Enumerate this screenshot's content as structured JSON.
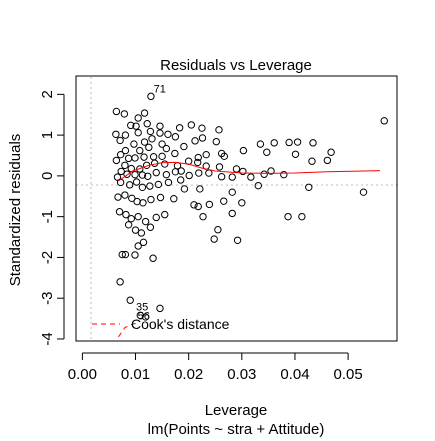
{
  "chart_data": {
    "type": "scatter",
    "title": "Residuals vs Leverage",
    "xlabel": "Leverage",
    "subtitle": "lm(Points ~ stra + Attitude)",
    "ylabel": "Standardized residuals",
    "xlim": [
      -0.0012,
      0.0592
    ],
    "ylim": [
      -4.05,
      2.45
    ],
    "x_ticks": [
      0.0,
      0.01,
      0.02,
      0.03,
      0.04,
      0.05
    ],
    "x_tick_labels": [
      "0.00",
      "0.01",
      "0.02",
      "0.03",
      "0.04",
      "0.05"
    ],
    "y_ticks": [
      -4,
      -3,
      -2,
      -1,
      0,
      1,
      2
    ],
    "y_tick_labels": [
      "-4",
      "-3",
      "-2",
      "-1",
      "0",
      "1",
      "2"
    ],
    "grid": false,
    "legend": {
      "position": "bottom-left",
      "label": "Cook's distance",
      "color": "#ff0000"
    },
    "colors": {
      "points": "#000000",
      "smooth": "#ff0000",
      "reference": "#bdbdbd"
    },
    "annotations": [
      {
        "text": "71",
        "x": 0.0134,
        "y": 2.05
      },
      {
        "text": "35",
        "x": 0.0101,
        "y": -3.3
      },
      {
        "text": "56",
        "x": 0.0104,
        "y": -3.52
      }
    ],
    "points": [
      [
        0.0129,
        1.95
      ],
      [
        0.0064,
        1.58
      ],
      [
        0.0079,
        1.52
      ],
      [
        0.0117,
        1.54
      ],
      [
        0.0105,
        1.42
      ],
      [
        0.0122,
        1.28
      ],
      [
        0.0091,
        1.24
      ],
      [
        0.0101,
        1.22
      ],
      [
        0.0146,
        1.22
      ],
      [
        0.0205,
        1.25
      ],
      [
        0.0183,
        1.18
      ],
      [
        0.0225,
        1.17
      ],
      [
        0.0257,
        1.13
      ],
      [
        0.0161,
        1.02
      ],
      [
        0.0063,
        1.02
      ],
      [
        0.0081,
        1.0
      ],
      [
        0.0105,
        1.06
      ],
      [
        0.0128,
        1.09
      ],
      [
        0.0146,
        1.05
      ],
      [
        0.0175,
        0.96
      ],
      [
        0.0226,
        0.93
      ],
      [
        0.0252,
        0.84
      ],
      [
        0.0212,
        0.86
      ],
      [
        0.0191,
        0.72
      ],
      [
        0.0071,
        0.87
      ],
      [
        0.0097,
        0.78
      ],
      [
        0.0117,
        0.83
      ],
      [
        0.0131,
        0.91
      ],
      [
        0.015,
        0.78
      ],
      [
        0.0158,
        0.67
      ],
      [
        0.0108,
        0.62
      ],
      [
        0.0125,
        0.7
      ],
      [
        0.0081,
        0.62
      ],
      [
        0.0072,
        0.52
      ],
      [
        0.0087,
        0.43
      ],
      [
        0.0099,
        0.44
      ],
      [
        0.0116,
        0.46
      ],
      [
        0.0134,
        0.47
      ],
      [
        0.015,
        0.48
      ],
      [
        0.0174,
        0.55
      ],
      [
        0.0218,
        0.45
      ],
      [
        0.0233,
        0.52
      ],
      [
        0.0262,
        0.55
      ],
      [
        0.0267,
        0.48
      ],
      [
        0.0303,
        0.62
      ],
      [
        0.0335,
        0.78
      ],
      [
        0.0361,
        0.81
      ],
      [
        0.0389,
        0.82
      ],
      [
        0.0405,
        0.83
      ],
      [
        0.0434,
        0.81
      ],
      [
        0.0347,
        0.58
      ],
      [
        0.0401,
        0.53
      ],
      [
        0.0468,
        0.58
      ],
      [
        0.0461,
        0.38
      ],
      [
        0.0568,
        1.35
      ],
      [
        0.0064,
        0.38
      ],
      [
        0.008,
        0.26
      ],
      [
        0.0092,
        0.18
      ],
      [
        0.0108,
        0.17
      ],
      [
        0.0121,
        0.26
      ],
      [
        0.0136,
        0.31
      ],
      [
        0.0155,
        0.29
      ],
      [
        0.0179,
        0.25
      ],
      [
        0.02,
        0.36
      ],
      [
        0.0217,
        0.33
      ],
      [
        0.0233,
        0.24
      ],
      [
        0.0258,
        0.22
      ],
      [
        0.029,
        0.17
      ],
      [
        0.0302,
        0.11
      ],
      [
        0.0073,
        0.11
      ],
      [
        0.0084,
        0.04
      ],
      [
        0.0099,
        0.03
      ],
      [
        0.0113,
        0.02
      ],
      [
        0.0123,
        -0.01
      ],
      [
        0.0139,
        0.08
      ],
      [
        0.0158,
        0.03
      ],
      [
        0.0175,
        0.1
      ],
      [
        0.0186,
        0.12
      ],
      [
        0.0201,
        0.01
      ],
      [
        0.0219,
        0.07
      ],
      [
        0.0238,
        0.07
      ],
      [
        0.0262,
        -0.02
      ],
      [
        0.0282,
        -0.03
      ],
      [
        0.0317,
        -0.03
      ],
      [
        0.0342,
        0.04
      ],
      [
        0.0355,
        0.12
      ],
      [
        0.0379,
        0.03
      ],
      [
        0.0432,
        0.36
      ],
      [
        0.0066,
        -0.03
      ],
      [
        0.0072,
        -0.16
      ],
      [
        0.0089,
        -0.22
      ],
      [
        0.0102,
        -0.15
      ],
      [
        0.0113,
        -0.28
      ],
      [
        0.0127,
        -0.25
      ],
      [
        0.0143,
        -0.21
      ],
      [
        0.0162,
        -0.16
      ],
      [
        0.0185,
        -0.1
      ],
      [
        0.0192,
        -0.32
      ],
      [
        0.0221,
        -0.32
      ],
      [
        0.0282,
        -0.4
      ],
      [
        0.0331,
        -0.24
      ],
      [
        0.0426,
        -0.28
      ],
      [
        0.0529,
        -0.4
      ],
      [
        0.0067,
        -0.52
      ],
      [
        0.008,
        -0.47
      ],
      [
        0.0093,
        -0.55
      ],
      [
        0.0103,
        -0.63
      ],
      [
        0.0114,
        -0.66
      ],
      [
        0.0129,
        -0.58
      ],
      [
        0.0147,
        -0.53
      ],
      [
        0.0172,
        -0.56
      ],
      [
        0.021,
        -0.71
      ],
      [
        0.0218,
        -0.75
      ],
      [
        0.0239,
        -0.7
      ],
      [
        0.0266,
        -0.62
      ],
      [
        0.0282,
        -0.92
      ],
      [
        0.03,
        -0.66
      ],
      [
        0.0387,
        -1.0
      ],
      [
        0.0413,
        -1.0
      ],
      [
        0.007,
        -0.88
      ],
      [
        0.0082,
        -0.95
      ],
      [
        0.0092,
        -1.05
      ],
      [
        0.0105,
        -1.0
      ],
      [
        0.0119,
        -1.12
      ],
      [
        0.0139,
        -1.02
      ],
      [
        0.0155,
        -0.95
      ],
      [
        0.0087,
        -1.2
      ],
      [
        0.01,
        -1.33
      ],
      [
        0.0111,
        -1.4
      ],
      [
        0.0128,
        -1.26
      ],
      [
        0.0115,
        -1.63
      ],
      [
        0.0105,
        -1.72
      ],
      [
        0.0227,
        -1.0
      ],
      [
        0.0255,
        -1.32
      ],
      [
        0.0248,
        -1.55
      ],
      [
        0.0292,
        -1.58
      ],
      [
        0.0075,
        -1.93
      ],
      [
        0.0081,
        -1.93
      ],
      [
        0.0099,
        -1.94
      ],
      [
        0.0133,
        -2.02
      ],
      [
        0.0071,
        -2.6
      ],
      [
        0.009,
        -3.05
      ],
      [
        0.0109,
        -3.42
      ],
      [
        0.0119,
        -3.46
      ],
      [
        0.0146,
        -3.25
      ]
    ],
    "smooth_line": [
      [
        0.0068,
        -0.12
      ],
      [
        0.0095,
        0.12
      ],
      [
        0.0125,
        0.26
      ],
      [
        0.015,
        0.32
      ],
      [
        0.0175,
        0.33
      ],
      [
        0.02,
        0.29
      ],
      [
        0.0225,
        0.19
      ],
      [
        0.025,
        0.12
      ],
      [
        0.03,
        0.07
      ],
      [
        0.035,
        0.06
      ],
      [
        0.04,
        0.07
      ],
      [
        0.046,
        0.1
      ],
      [
        0.053,
        0.12
      ],
      [
        0.056,
        0.13
      ]
    ],
    "cook_line": [
      [
        0.0068,
        -3.95
      ],
      [
        0.008,
        -3.72
      ],
      [
        0.0095,
        -3.63
      ],
      [
        0.0105,
        -3.62
      ]
    ]
  }
}
